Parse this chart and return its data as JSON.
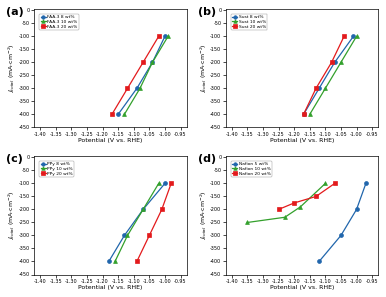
{
  "panels": [
    {
      "label": "(a)",
      "legend_labels": [
        "FAA-3 8 wt%",
        "FAA-3 10 wt%",
        "FAA-3 20 wt%"
      ],
      "colors": [
        "#2166ac",
        "#33a02c",
        "#e31a1c"
      ],
      "markers": [
        "o",
        "^",
        "s"
      ],
      "series": [
        {
          "x": [
            -1.15,
            -1.09,
            -1.04,
            -1.0
          ],
          "y": [
            -400,
            -300,
            -200,
            -100
          ]
        },
        {
          "x": [
            -1.13,
            -1.08,
            -1.04,
            -0.99
          ],
          "y": [
            -400,
            -300,
            -200,
            -100
          ]
        },
        {
          "x": [
            -1.17,
            -1.12,
            -1.07,
            -1.02
          ],
          "y": [
            -400,
            -300,
            -200,
            -100
          ]
        }
      ]
    },
    {
      "label": "(b)",
      "legend_labels": [
        "Sust 8 wt%",
        "Sust 10 wt%",
        "Sust 20 wt%"
      ],
      "colors": [
        "#2166ac",
        "#33a02c",
        "#e31a1c"
      ],
      "markers": [
        "o",
        "^",
        "s"
      ],
      "series": [
        {
          "x": [
            -1.17,
            -1.12,
            -1.07,
            -1.01
          ],
          "y": [
            -400,
            -300,
            -200,
            -100
          ]
        },
        {
          "x": [
            -1.15,
            -1.1,
            -1.05,
            -1.0
          ],
          "y": [
            -400,
            -300,
            -200,
            -100
          ]
        },
        {
          "x": [
            -1.17,
            -1.13,
            -1.08,
            -1.04
          ],
          "y": [
            -400,
            -300,
            -200,
            -100
          ]
        }
      ]
    },
    {
      "label": "(c)",
      "legend_labels": [
        "PPy 8 wt%",
        "PPy 10 wt%",
        "PPy 20 wt%"
      ],
      "colors": [
        "#2166ac",
        "#33a02c",
        "#e31a1c"
      ],
      "markers": [
        "o",
        "^",
        "s"
      ],
      "series": [
        {
          "x": [
            -1.18,
            -1.13,
            -1.07,
            -1.0
          ],
          "y": [
            -400,
            -300,
            -200,
            -100
          ]
        },
        {
          "x": [
            -1.16,
            -1.12,
            -1.07,
            -1.02
          ],
          "y": [
            -400,
            -300,
            -200,
            -100
          ]
        },
        {
          "x": [
            -1.09,
            -1.05,
            -1.01,
            -0.98
          ],
          "y": [
            -400,
            -300,
            -200,
            -100
          ]
        }
      ]
    },
    {
      "label": "(d)",
      "legend_labels": [
        "Nafion 5 wt%",
        "Nafion 10 wt%",
        "Nafion 20 wt%"
      ],
      "colors": [
        "#2166ac",
        "#33a02c",
        "#e31a1c"
      ],
      "markers": [
        "o",
        "^",
        "s"
      ],
      "series": [
        {
          "x": [
            -1.12,
            -1.05,
            -1.0,
            -0.97
          ],
          "y": [
            -400,
            -300,
            -200,
            -100
          ]
        },
        {
          "x": [
            -1.35,
            -1.23,
            -1.18,
            -1.1
          ],
          "y": [
            -250,
            -230,
            -190,
            -100
          ]
        },
        {
          "x": [
            -1.25,
            -1.2,
            -1.13,
            -1.07
          ],
          "y": [
            -200,
            -175,
            -150,
            -100
          ]
        }
      ]
    }
  ],
  "xlim": [
    -1.42,
    -0.93
  ],
  "ylim": [
    -450,
    5
  ],
  "xticks": [
    -1.4,
    -1.35,
    -1.3,
    -1.25,
    -1.2,
    -1.15,
    -1.1,
    -1.05,
    -1.0,
    -0.95
  ],
  "yticks": [
    0,
    -50,
    -100,
    -150,
    -200,
    -250,
    -300,
    -350,
    -400,
    -450
  ],
  "xlabel": "Potential (V vs. RHE)",
  "ylabel_italic": "J",
  "ylabel_sub": "total",
  "ylabel_unit": " (mA·cm⁻²)"
}
